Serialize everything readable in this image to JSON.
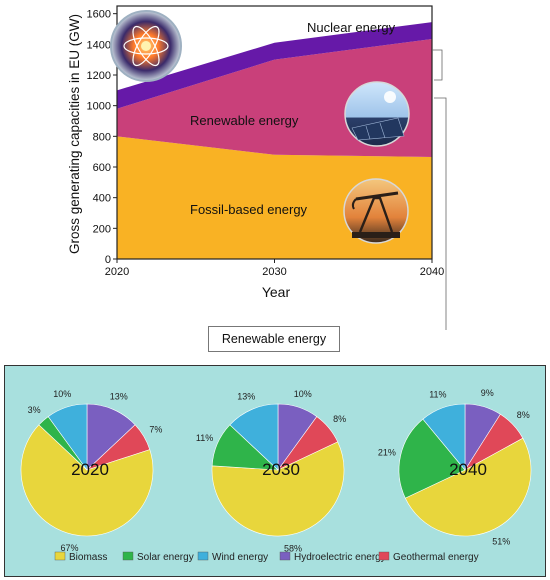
{
  "chart_data": [
    {
      "type": "area",
      "stacked": true,
      "xlabel": "Year",
      "ylabel": "Gross generating capacities in EU (GW)",
      "x": [
        2020,
        2030,
        2040
      ],
      "xticks": [
        "2020",
        "2030",
        "2040"
      ],
      "ylim": [
        0,
        1650
      ],
      "yticks": [
        "0",
        "200",
        "400",
        "600",
        "800",
        "1000",
        "1200",
        "1400",
        "1600"
      ],
      "series": [
        {
          "name": "Fossil-based energy",
          "values": [
            800,
            680,
            665
          ],
          "color": "#f9b224"
        },
        {
          "name": "Renewable energy",
          "values": [
            180,
            620,
            770
          ],
          "color": "#c9407a"
        },
        {
          "name": "Nuclear energy",
          "values": [
            120,
            110,
            110
          ],
          "color": "#6619a8"
        }
      ]
    },
    {
      "type": "pie",
      "title": "2020",
      "series": [
        {
          "name": "Biomass",
          "value": 67,
          "label": "67%"
        },
        {
          "name": "Solar energy",
          "value": 3,
          "label": "3%"
        },
        {
          "name": "Wind energy",
          "value": 10,
          "label": "10%"
        },
        {
          "name": "Hydroelectric energy",
          "value": 13,
          "label": "13%"
        },
        {
          "name": "Geothermal energy",
          "value": 7,
          "label": "7%"
        }
      ]
    },
    {
      "type": "pie",
      "title": "2030",
      "series": [
        {
          "name": "Biomass",
          "value": 58,
          "label": "58%"
        },
        {
          "name": "Solar energy",
          "value": 11,
          "label": "11%"
        },
        {
          "name": "Wind energy",
          "value": 13,
          "label": "13%"
        },
        {
          "name": "Hydroelectric energy",
          "value": 10,
          "label": "10%"
        },
        {
          "name": "Geothermal energy",
          "value": 8,
          "label": "8%"
        }
      ]
    },
    {
      "type": "pie",
      "title": "2040",
      "series": [
        {
          "name": "Biomass",
          "value": 51,
          "label": "51%"
        },
        {
          "name": "Solar energy",
          "value": 21,
          "label": "21%"
        },
        {
          "name": "Wind energy",
          "value": 11,
          "label": "11%"
        },
        {
          "name": "Hydroelectric energy",
          "value": 9,
          "label": "9%"
        },
        {
          "name": "Geothermal energy",
          "value": 8,
          "label": "8%"
        }
      ]
    }
  ],
  "callout": {
    "label": "Renewable energy"
  },
  "legend": [
    {
      "name": "Biomass",
      "color": "#e8d63c"
    },
    {
      "name": "Solar energy",
      "color": "#2fb44a"
    },
    {
      "name": "Wind energy",
      "color": "#3fb0dc"
    },
    {
      "name": "Hydroelectric energy",
      "color": "#7a5fc0"
    },
    {
      "name": "Geothermal energy",
      "color": "#e04858"
    }
  ],
  "icons": [
    "nuclear-atom-icon",
    "solar-panel-icon",
    "oil-pump-icon"
  ]
}
